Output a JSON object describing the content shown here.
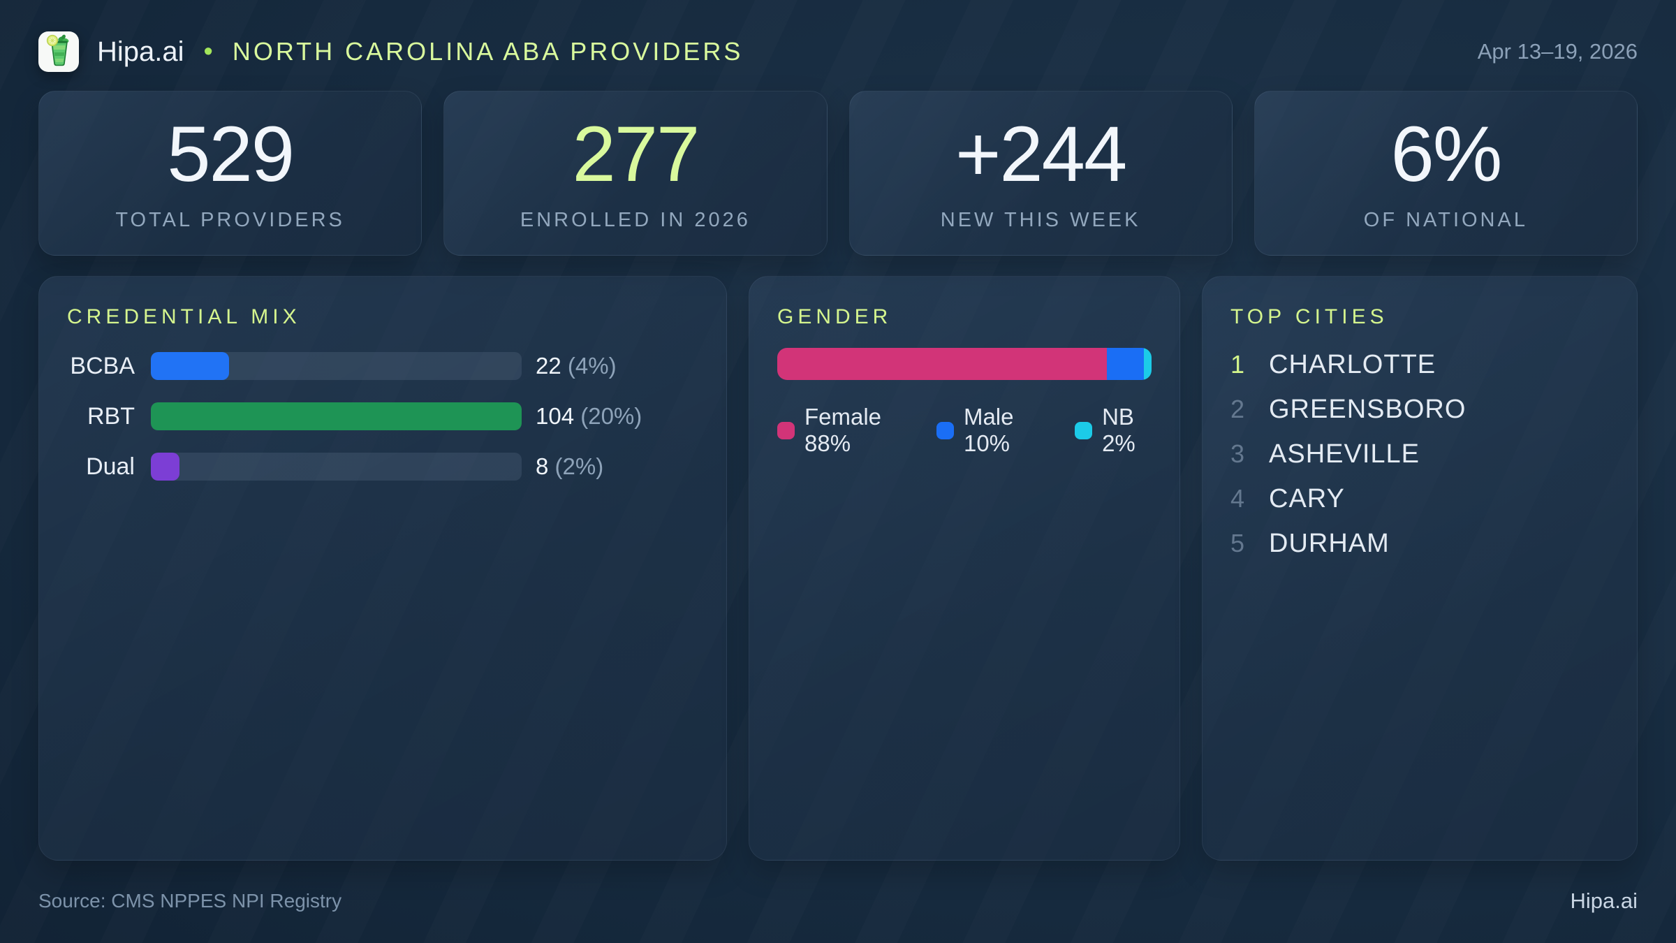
{
  "header": {
    "brand": "Hipa.ai",
    "separator": "•",
    "title": "NORTH CAROLINA ABA PROVIDERS",
    "date_range": "Apr 13–19, 2026",
    "logo_icon": "mojito-drink-icon",
    "accent_color": "#d9f99d"
  },
  "stats": [
    {
      "value": "529",
      "label": "TOTAL PROVIDERS",
      "color": "#f2f6fb"
    },
    {
      "value": "277",
      "label": "ENROLLED IN 2026",
      "color": "#d9f99d"
    },
    {
      "value": "+244",
      "label": "NEW THIS WEEK",
      "color": "#f2f6fb"
    },
    {
      "value": "6%",
      "label": "OF NATIONAL",
      "color": "#f2f6fb"
    }
  ],
  "credential_mix": {
    "title": "CREDENTIAL MIX",
    "rows": [
      {
        "label": "BCBA",
        "value": 22,
        "value_label": "22",
        "pct_label": "(4%)",
        "color": "#2173f5"
      },
      {
        "label": "RBT",
        "value": 104,
        "value_label": "104",
        "pct_label": "(20%)",
        "color": "#1e9455"
      },
      {
        "label": "Dual",
        "value": 8,
        "value_label": "8",
        "pct_label": "(2%)",
        "color": "#7c3ed5"
      }
    ]
  },
  "gender": {
    "title": "GENDER",
    "segments": [
      {
        "label": "Female",
        "pct": 88,
        "legend_label": "Female 88%",
        "color": "#d23478"
      },
      {
        "label": "Male",
        "pct": 10,
        "legend_label": "Male 10%",
        "color": "#1a6ef5"
      },
      {
        "label": "NB",
        "pct": 2,
        "legend_label": "NB 2%",
        "color": "#1ccbe8"
      }
    ]
  },
  "top_cities": {
    "title": "TOP CITIES",
    "items": [
      {
        "rank": "1",
        "name": "CHARLOTTE",
        "rank_color": "#d3f58b"
      },
      {
        "rank": "2",
        "name": "GREENSBORO",
        "rank_color": "#64788f"
      },
      {
        "rank": "3",
        "name": "ASHEVILLE",
        "rank_color": "#64788f"
      },
      {
        "rank": "4",
        "name": "CARY",
        "rank_color": "#64788f"
      },
      {
        "rank": "5",
        "name": "DURHAM",
        "rank_color": "#64788f"
      }
    ]
  },
  "footer": {
    "source": "Source: CMS NPPES NPI Registry",
    "brand": "Hipa.ai"
  },
  "chart_data": [
    {
      "type": "bar",
      "orientation": "horizontal",
      "title": "CREDENTIAL MIX",
      "categories": [
        "BCBA",
        "RBT",
        "Dual"
      ],
      "values": [
        22,
        104,
        8
      ],
      "percent_labels": [
        "4%",
        "20%",
        "2%"
      ],
      "colors": [
        "#2173f5",
        "#1e9455",
        "#7c3ed5"
      ],
      "note": "bar lengths normalized to max value (RBT = 104)"
    },
    {
      "type": "bar",
      "subtype": "stacked-100-percent",
      "title": "GENDER",
      "categories": [
        "Female",
        "Male",
        "NB"
      ],
      "values": [
        88,
        10,
        2
      ],
      "unit": "%",
      "colors": [
        "#d23478",
        "#1a6ef5",
        "#1ccbe8"
      ],
      "legend_position": "below-bar"
    },
    {
      "type": "table",
      "title": "TOP CITIES",
      "columns": [
        "rank",
        "city"
      ],
      "rows": [
        [
          1,
          "CHARLOTTE"
        ],
        [
          2,
          "GREENSBORO"
        ],
        [
          3,
          "ASHEVILLE"
        ],
        [
          4,
          "CARY"
        ],
        [
          5,
          "DURHAM"
        ]
      ]
    }
  ]
}
